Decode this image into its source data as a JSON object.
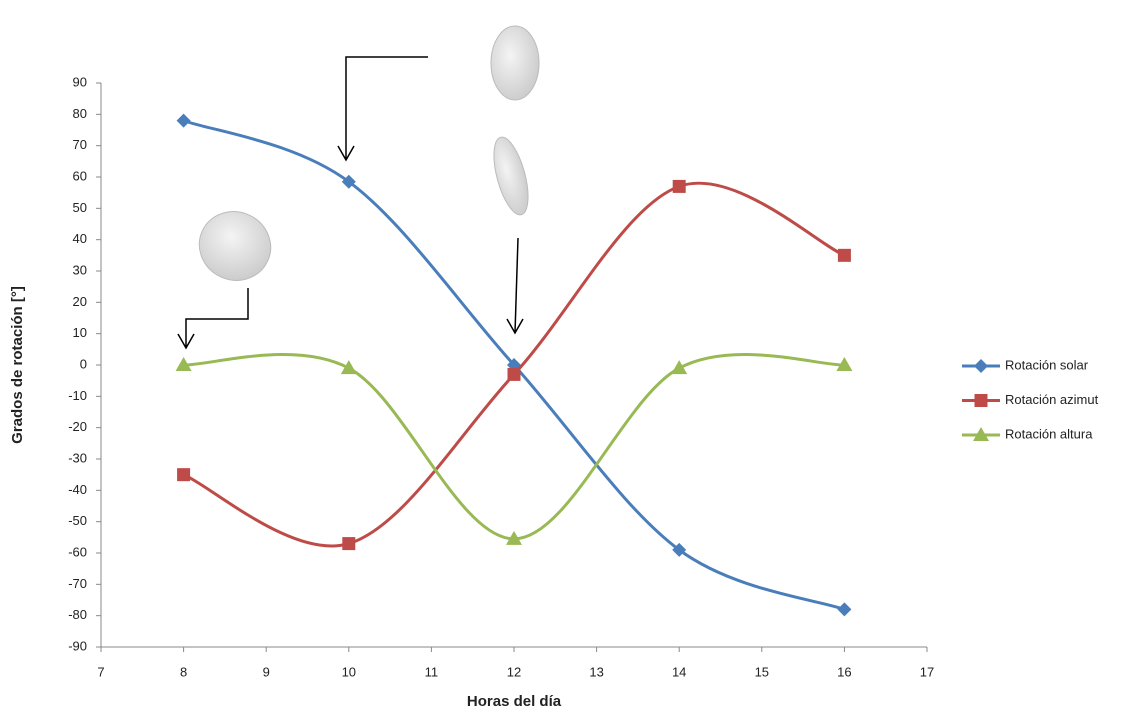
{
  "chart_data": {
    "type": "line",
    "smooth": true,
    "x_label": "Horas del día",
    "y_label": "Grados de rotación [°]",
    "xlim": [
      7,
      17
    ],
    "xticks": [
      7,
      8,
      9,
      10,
      11,
      12,
      13,
      14,
      15,
      16,
      17
    ],
    "ylim": [
      -90,
      90
    ],
    "yticks": [
      -90,
      -80,
      -70,
      -60,
      -50,
      -40,
      -30,
      -20,
      -10,
      0,
      10,
      20,
      30,
      40,
      50,
      60,
      70,
      80,
      90
    ],
    "legend": "right",
    "x": [
      8,
      10,
      12,
      14,
      16
    ],
    "series": [
      {
        "name": "Rotación solar",
        "color": "#4a7ebb",
        "marker": "diamond",
        "values": [
          78,
          58.5,
          0,
          -59,
          -78
        ]
      },
      {
        "name": "Rotación azimut",
        "color": "#be4b48",
        "marker": "square",
        "values": [
          -35,
          -57,
          -3,
          57,
          35
        ]
      },
      {
        "name": "Rotación altura",
        "color": "#98b954",
        "marker": "triangle",
        "values": [
          0,
          -1,
          -55.5,
          -1,
          0
        ]
      }
    ]
  }
}
